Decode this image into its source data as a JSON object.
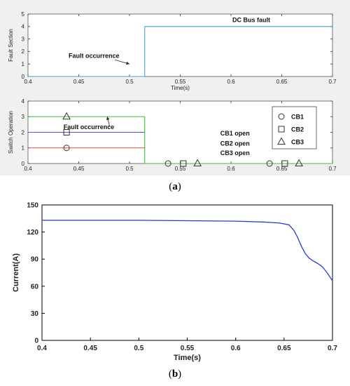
{
  "captions": {
    "a": "a",
    "b": "b"
  },
  "chart_data": [
    {
      "type": "line",
      "ylabel": "Fault Section",
      "xlabel": "Time(s)",
      "xlim": [
        0.4,
        0.7
      ],
      "ylim": [
        0,
        5
      ],
      "xticks": [
        "0.4",
        "0.45",
        "0.5",
        "0.55",
        "0.6",
        "0.65",
        "0.7"
      ],
      "yticks": [
        "0",
        "1",
        "2",
        "3",
        "4",
        "5"
      ],
      "grid": false,
      "series": [
        {
          "color": "#4a9fd4",
          "x": [
            0.4,
            0.515,
            0.515,
            0.7
          ],
          "y": [
            0,
            0,
            4,
            4
          ]
        }
      ],
      "annotations": [
        {
          "text": "DC Bus fault",
          "x": 0.62,
          "y": 4.35
        },
        {
          "text": "Fault occurrence",
          "x": 0.465,
          "y": 1.5,
          "arrow_to": [
            0.5,
            1.0
          ]
        }
      ]
    },
    {
      "type": "line",
      "ylabel": "Switch Operation",
      "xlabel": "",
      "xlim": [
        0.4,
        0.7
      ],
      "ylim": [
        0,
        4
      ],
      "xticks": [
        "0.4",
        "0.45",
        "0.5",
        "0.55",
        "0.6",
        "0.65",
        "0.7"
      ],
      "yticks": [
        "0",
        "1",
        "2",
        "3",
        "4"
      ],
      "grid": false,
      "series": [
        {
          "color": "#3cc03c",
          "x": [
            0.4,
            0.515,
            0.515,
            0.7
          ],
          "y": [
            3,
            3,
            0,
            0
          ]
        },
        {
          "color": "#4a56d8",
          "x": [
            0.4,
            0.515
          ],
          "y": [
            2,
            2
          ]
        },
        {
          "color": "#e04a4a",
          "x": [
            0.4,
            0.515
          ],
          "y": [
            1,
            1
          ]
        }
      ],
      "markers": [
        {
          "shape": "circle",
          "x": 0.438,
          "y": 1
        },
        {
          "shape": "square",
          "x": 0.438,
          "y": 2
        },
        {
          "shape": "triangle",
          "x": 0.438,
          "y": 3
        },
        {
          "shape": "circle",
          "x": 0.538,
          "y": 0
        },
        {
          "shape": "square",
          "x": 0.553,
          "y": 0
        },
        {
          "shape": "triangle",
          "x": 0.567,
          "y": 0
        },
        {
          "shape": "circle",
          "x": 0.638,
          "y": 0
        },
        {
          "shape": "square",
          "x": 0.653,
          "y": 0
        },
        {
          "shape": "triangle",
          "x": 0.667,
          "y": 0
        }
      ],
      "annotations": [
        {
          "text": "Fault occurrence",
          "x": 0.46,
          "y": 2.2,
          "arrow_to": [
            0.478,
            3.0
          ]
        },
        {
          "text": "CB1 open",
          "x": 0.604,
          "y": 1.8
        },
        {
          "text": "CB2 open",
          "x": 0.604,
          "y": 1.15
        },
        {
          "text": "CB3 open",
          "x": 0.604,
          "y": 0.55
        }
      ],
      "legend": {
        "placement": "right",
        "entries": [
          {
            "label": "CB1",
            "shape": "circle"
          },
          {
            "label": "CB2",
            "shape": "square"
          },
          {
            "label": "CB3",
            "shape": "triangle"
          }
        ]
      }
    },
    {
      "type": "line",
      "ylabel": "Current(A)",
      "xlabel": "Time(s)",
      "xlim": [
        0.4,
        0.7
      ],
      "ylim": [
        0,
        150
      ],
      "xticks": [
        "0.4",
        "0.45",
        "0.5",
        "0.55",
        "0.6",
        "0.65",
        "0.7"
      ],
      "yticks": [
        "0",
        "30",
        "60",
        "90",
        "120",
        "150"
      ],
      "grid": false,
      "series": [
        {
          "color": "#2a3bc8",
          "x": [
            0.4,
            0.45,
            0.5,
            0.55,
            0.6,
            0.63,
            0.645,
            0.655,
            0.66,
            0.664,
            0.668,
            0.672,
            0.676,
            0.68,
            0.685,
            0.69,
            0.695,
            0.7
          ],
          "y": [
            133,
            133,
            133,
            132.5,
            132,
            131,
            130,
            128,
            122,
            114,
            104,
            96,
            91,
            88,
            85,
            81,
            74,
            66
          ]
        }
      ]
    }
  ]
}
